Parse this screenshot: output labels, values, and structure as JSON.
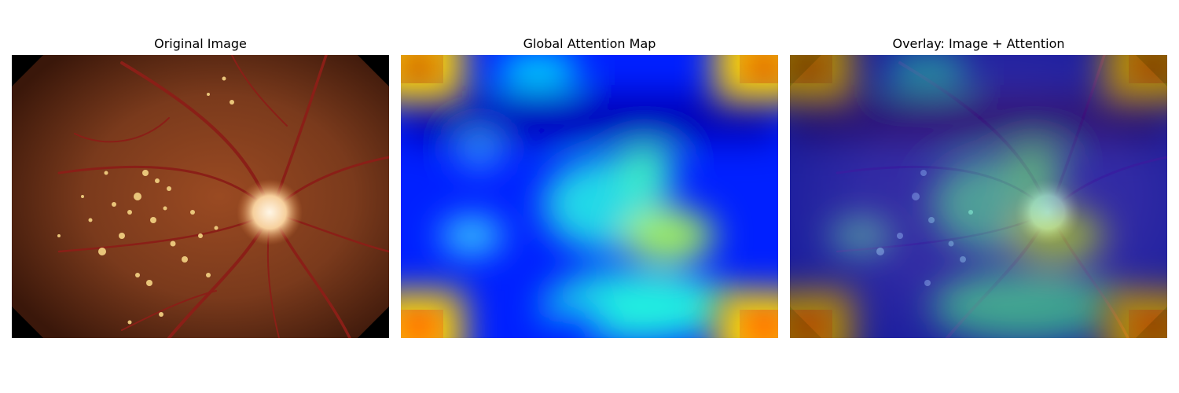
{
  "figure": {
    "panels": [
      {
        "title": "Original Image",
        "content": "retinal fundus photograph"
      },
      {
        "title": "Global Attention Map",
        "content": "attention heatmap (jet colormap)"
      },
      {
        "title": "Overlay: Image + Attention",
        "content": "fundus image blended with attention heatmap"
      }
    ],
    "colormap": "jet",
    "colors": {
      "fundus_base": "#7a3a1c",
      "optic_disc": "#fff2d8",
      "exudate": "#e9c57a",
      "vessel": "#8a1f17",
      "heat_low": "#00007f",
      "heat_mid": "#00ffff",
      "heat_high": "#7f0000"
    }
  }
}
